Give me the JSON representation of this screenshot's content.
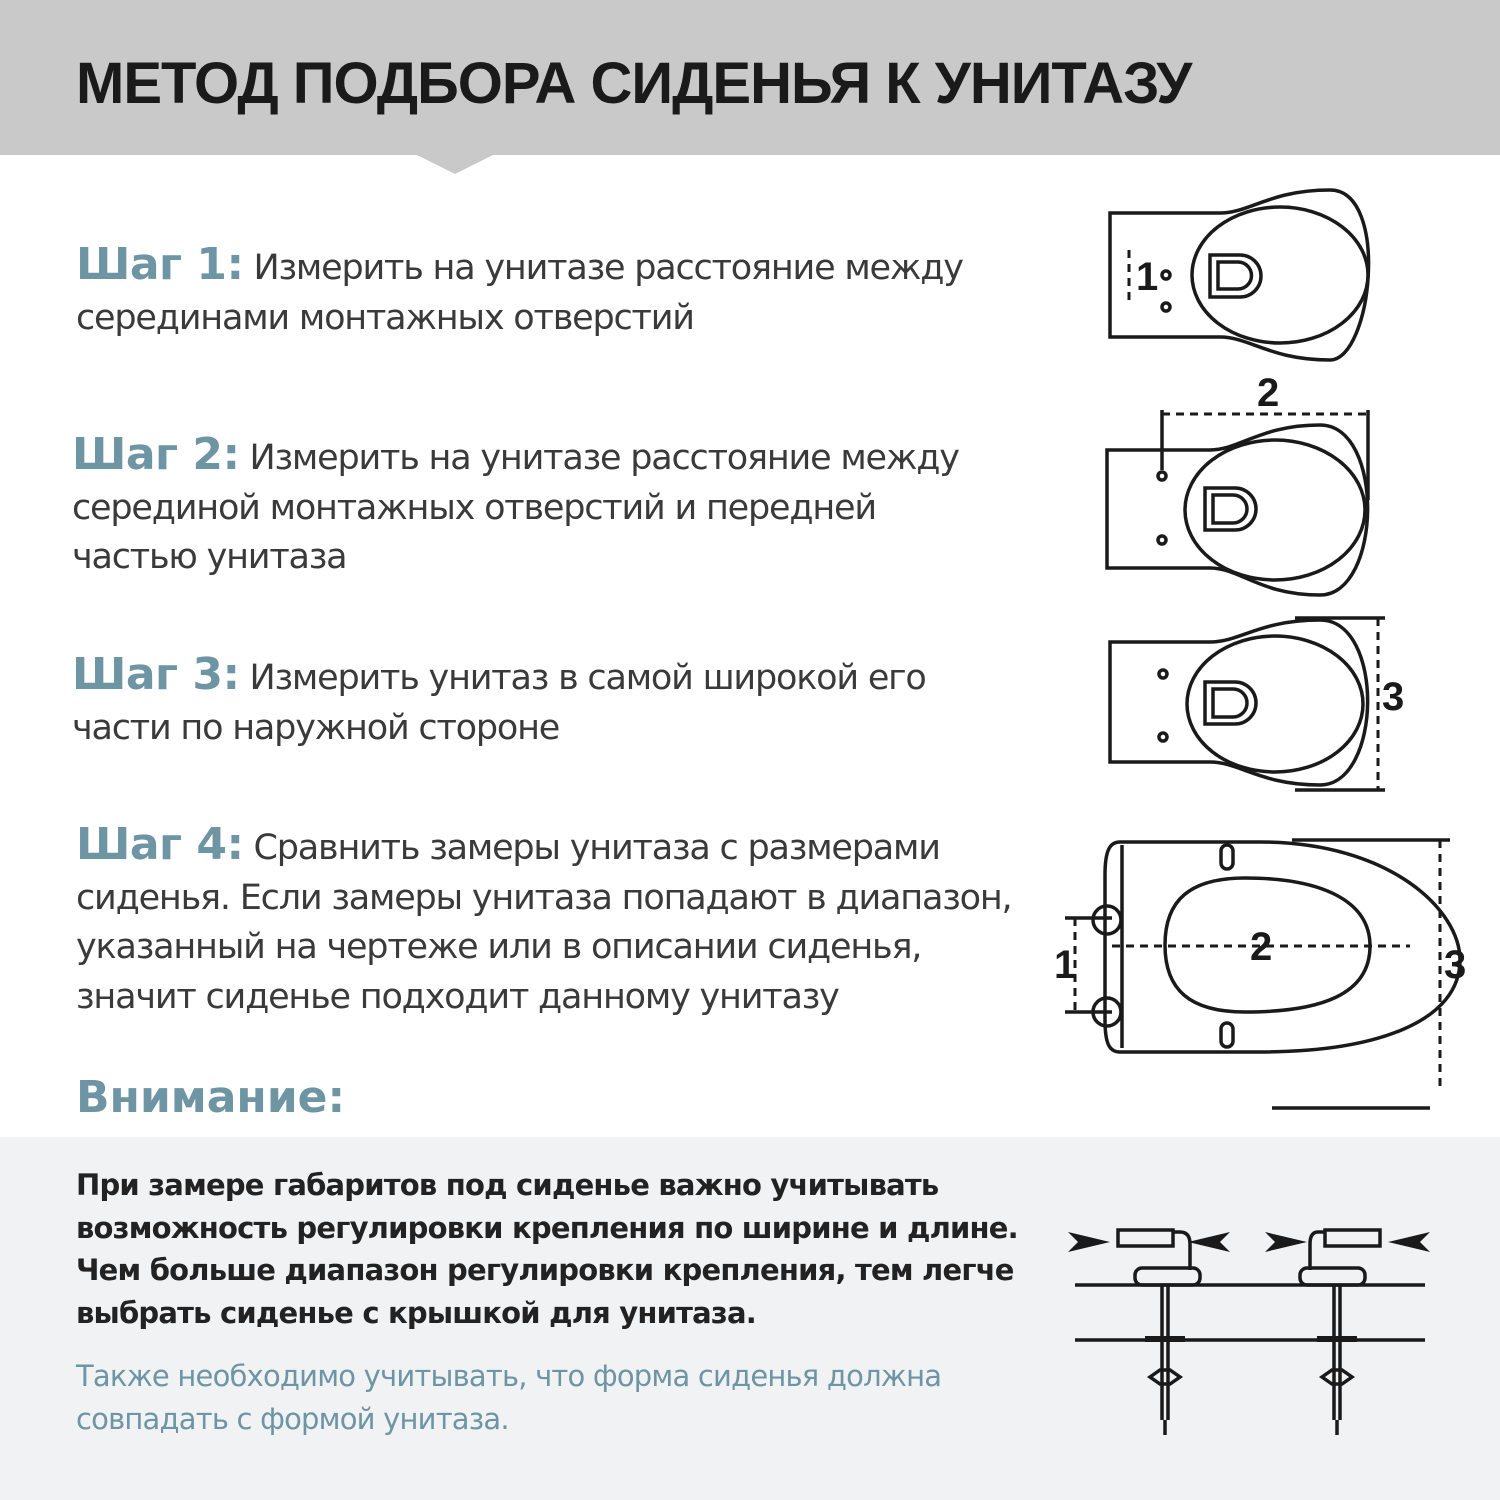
{
  "header": {
    "title": "МЕТОД ПОДБОРА СИДЕНЬЯ К УНИТАЗУ"
  },
  "steps": [
    {
      "label": "Шаг 1:",
      "text": "Измерить на унитазе расстояние между серединами монтажных отверстий"
    },
    {
      "label": "Шаг 2:",
      "text": "Измерить на унитазе расстояние между серединой монтажных отверстий и передней частью унитаза"
    },
    {
      "label": "Шаг 3:",
      "text": "Измерить унитаз в самой широкой его части по наружной стороне"
    },
    {
      "label": "Шаг 4:",
      "text": "Сравнить замеры унитаза с размерами сиденья. Если замеры унитаза попадают в диапазон, указанный на чертеже или в описании сиденья, значит сиденье подходит данному унитазу"
    }
  ],
  "diagrams": {
    "marks": [
      "1",
      "2",
      "3"
    ]
  },
  "attention": {
    "title": "Внимание:",
    "note": "При замере габаритов под сиденье важно учитывать возможность регулировки крепления по ширине и длине. Чем больше диапазон регулировки крепления,  тем легче выбрать сиденье с крышкой для унитаза.",
    "note_accent": "Также необходимо учитывать, что форма сиденья должна совпадать с формой унитаза."
  },
  "colors": {
    "accent": "#6e95a3",
    "header_bg": "#c9c9c9",
    "note_bg": "#f1f2f4"
  }
}
